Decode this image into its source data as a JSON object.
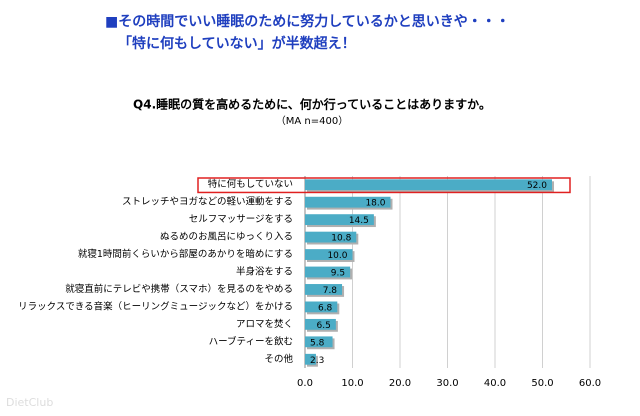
{
  "headline": [
    "■その時間でいい睡眠のために努力しているかと思いきや・・・",
    "「特に何もしていない」が半数超え！"
  ],
  "watermark": "DietClub",
  "chart_data": {
    "type": "bar",
    "orientation": "horizontal",
    "title": "Q4.睡眠の質を高めるために、何か行っていることはありますか。",
    "subtitle": "（MA n=400）",
    "categories": [
      "特に何もしていない",
      "ストレッチやヨガなどの軽い運動をする",
      "セルフマッサージをする",
      "ぬるめのお風呂にゆっくり入る",
      "就寝1時間前くらいから部屋のあかりを暗めにする",
      "半身浴をする",
      "就寝直前にテレビや携帯（スマホ）を見るのをやめる",
      "リラックスできる音楽（ヒーリングミュージックなど）をかける",
      "アロマを焚く",
      "ハーブティーを飲む",
      "その他"
    ],
    "values": [
      52.0,
      18.0,
      14.5,
      10.8,
      10.0,
      9.5,
      7.8,
      6.8,
      6.5,
      5.8,
      2.3
    ],
    "value_labels": [
      "52.0",
      "18.0",
      "14.5",
      "10.8",
      "10.0",
      "9.5",
      "7.8",
      "6.8",
      "6.5",
      "5.8",
      "2.3"
    ],
    "color": "#4bacc6",
    "xlim": [
      0,
      60
    ],
    "xticks": [
      {
        "value": 0,
        "label": "0.0"
      },
      {
        "value": 10,
        "label": "10.0"
      },
      {
        "value": 20,
        "label": "20.0"
      },
      {
        "value": 30,
        "label": "30.0"
      },
      {
        "value": 40,
        "label": "40.0"
      },
      {
        "value": 50,
        "label": "50.0"
      },
      {
        "value": 60,
        "label": "60.0"
      }
    ],
    "grid": true
  }
}
